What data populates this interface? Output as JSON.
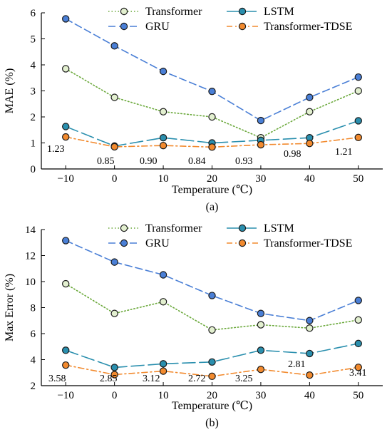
{
  "chart_data": [
    {
      "type": "line",
      "caption": "(a)",
      "xlabel": "Temperature (℃)",
      "ylabel": "MAE (%)",
      "x": [
        -10,
        0,
        10,
        20,
        30,
        40,
        50
      ],
      "xlim": [
        -15,
        55
      ],
      "ylim": [
        0,
        6
      ],
      "xticks": [
        -10,
        0,
        10,
        20,
        30,
        40,
        50
      ],
      "yticks": [
        0,
        1,
        2,
        3,
        4,
        5,
        6
      ],
      "legend": "top, two columns",
      "grid": false,
      "series": [
        {
          "name": "Transformer",
          "color": "#e3f0d0",
          "line_color": "#6aa83a",
          "dash": "dotted",
          "values": [
            3.85,
            2.75,
            2.2,
            2.0,
            1.2,
            2.2,
            3.0
          ]
        },
        {
          "name": "GRU",
          "color": "#4a7fd6",
          "line_color": "#4a7fd6",
          "dash": "dashed",
          "values": [
            5.77,
            4.73,
            3.75,
            2.98,
            1.86,
            2.75,
            3.53
          ]
        },
        {
          "name": "LSTM",
          "color": "#2a8fae",
          "line_color": "#2a8fae",
          "dash": "longdash",
          "values": [
            1.63,
            0.88,
            1.2,
            1.0,
            1.1,
            1.2,
            1.85
          ]
        },
        {
          "name": "Transformer-TDSE",
          "color": "#f28a2e",
          "line_color": "#f28a2e",
          "dash": "dashdot",
          "values": [
            1.23,
            0.85,
            0.9,
            0.84,
            0.93,
            0.98,
            1.21
          ]
        }
      ],
      "data_labels": [
        "1.23",
        "0.85",
        "0.90",
        "0.84",
        "0.93",
        "0.98",
        "1.21"
      ]
    },
    {
      "type": "line",
      "caption": "(b)",
      "xlabel": "Temperature (℃)",
      "ylabel": "Max Error (%)",
      "x": [
        -10,
        0,
        10,
        20,
        30,
        40,
        50
      ],
      "xlim": [
        -15,
        55
      ],
      "ylim": [
        2,
        14
      ],
      "xticks": [
        -10,
        0,
        10,
        20,
        30,
        40,
        50
      ],
      "yticks": [
        2,
        4,
        6,
        8,
        10,
        12,
        14
      ],
      "legend": "top, two columns",
      "grid": false,
      "series": [
        {
          "name": "Transformer",
          "color": "#e3f0d0",
          "line_color": "#6aa83a",
          "dash": "dotted",
          "values": [
            9.83,
            7.55,
            8.45,
            6.28,
            6.68,
            6.42,
            7.05
          ]
        },
        {
          "name": "GRU",
          "color": "#4a7fd6",
          "line_color": "#4a7fd6",
          "dash": "dashed",
          "values": [
            13.15,
            11.5,
            10.52,
            8.93,
            7.55,
            7.0,
            8.55
          ]
        },
        {
          "name": "LSTM",
          "color": "#2a8fae",
          "line_color": "#2a8fae",
          "dash": "longdash",
          "values": [
            4.72,
            3.4,
            3.68,
            3.82,
            4.72,
            4.47,
            5.24
          ]
        },
        {
          "name": "Transformer-TDSE",
          "color": "#f28a2e",
          "line_color": "#f28a2e",
          "dash": "dashdot",
          "values": [
            3.58,
            2.85,
            3.12,
            2.72,
            3.25,
            2.81,
            3.41
          ]
        }
      ],
      "data_labels": [
        "3.58",
        "2.85",
        "3.12",
        "2.72",
        "3.25",
        "2.81",
        "3.41"
      ]
    }
  ]
}
